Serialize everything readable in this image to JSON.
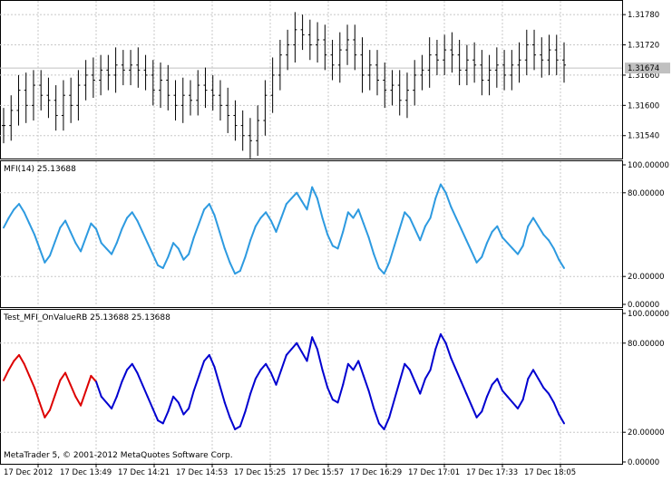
{
  "app": {
    "copyright": "MetaTrader 5, © 2001-2012 MetaQuotes Software Corp."
  },
  "colors": {
    "mfi_line": "#2d9ae0",
    "custom_up": "#0000d0",
    "custom_down": "#dd0000",
    "candles": "#000000",
    "grid": "#c8c8c8",
    "current_price_bg": "#c0c0c0"
  },
  "time_axis": {
    "labels": [
      "17 Dec 2012",
      "17 Dec 13:49",
      "17 Dec 14:21",
      "17 Dec 14:53",
      "17 Dec 15:25",
      "17 Dec 15:57",
      "17 Dec 16:29",
      "17 Dec 17:01",
      "17 Dec 17:33",
      "17 Dec 18:05"
    ]
  },
  "chart_data": [
    {
      "type": "candlestick",
      "panel": "price",
      "ylim": [
        1.315,
        1.318
      ],
      "yticks": [
        "1.31780",
        "1.31720",
        "1.31660",
        "1.31600",
        "1.31540"
      ],
      "ytick_values": [
        1.3178,
        1.3172,
        1.3166,
        1.316,
        1.3154
      ],
      "current_price": "1.31674",
      "current_price_value": 1.31674,
      "close": [
        1.3156,
        1.3159,
        1.3163,
        1.316,
        1.3164,
        1.3162,
        1.3161,
        1.3158,
        1.3162,
        1.316,
        1.3164,
        1.3166,
        1.3165,
        1.3167,
        1.3166,
        1.3168,
        1.3167,
        1.3168,
        1.3167,
        1.3166,
        1.3163,
        1.3165,
        1.3162,
        1.316,
        1.3162,
        1.3161,
        1.3164,
        1.3163,
        1.3162,
        1.316,
        1.3158,
        1.3156,
        1.3154,
        1.3153,
        1.3157,
        1.3162,
        1.3166,
        1.317,
        1.3172,
        1.3175,
        1.3174,
        1.3172,
        1.3173,
        1.317,
        1.3168,
        1.3171,
        1.3173,
        1.317,
        1.3166,
        1.3168,
        1.3165,
        1.3163,
        1.3164,
        1.3161,
        1.3163,
        1.3166,
        1.3167,
        1.317,
        1.3169,
        1.3171,
        1.317,
        1.3167,
        1.3169,
        1.3168,
        1.3165,
        1.3167,
        1.3168,
        1.3166,
        1.3168,
        1.3169,
        1.3172,
        1.317,
        1.3169,
        1.3171,
        1.3169,
        1.3168
      ],
      "high_offset": [
        0.00035,
        0.0003,
        0.0003,
        0.00035,
        0.0003,
        0.0003,
        0.00035,
        0.0003,
        0.0003,
        0.00035,
        0.0003,
        0.0003,
        0.00035,
        0.0003,
        0.0003,
        0.00035,
        0.0003,
        0.0003,
        0.00035,
        0.0003,
        0.0003,
        0.00035,
        0.0003,
        0.0003,
        0.00035,
        0.0003,
        0.0003,
        0.00035,
        0.0003,
        0.0003,
        0.00035,
        0.0003,
        0.0003,
        0.00035,
        0.0003,
        0.0003,
        0.00035,
        0.0003,
        0.0003,
        0.00035,
        0.0003,
        0.0003,
        0.00035,
        0.0003,
        0.0003,
        0.00035,
        0.0003,
        0.0003,
        0.00035,
        0.0003,
        0.0003,
        0.00035,
        0.0003,
        0.0003,
        0.00035,
        0.0003,
        0.0003,
        0.00035,
        0.0003,
        0.0003,
        0.00035,
        0.0003,
        0.0003,
        0.00035,
        0.0003,
        0.0003,
        0.00035,
        0.0003,
        0.0003,
        0.00035,
        0.0003,
        0.0003,
        0.00035,
        0.0003,
        0.0003,
        0.00035
      ],
      "low_offset": [
        0.00035,
        0.0003,
        0.0003,
        0.00035,
        0.0003,
        0.0003,
        0.00035,
        0.0003,
        0.0003,
        0.00035,
        0.0003,
        0.0003,
        0.00035,
        0.0003,
        0.0003,
        0.00035,
        0.0003,
        0.0003,
        0.00035,
        0.0003,
        0.0003,
        0.00035,
        0.0003,
        0.0003,
        0.00035,
        0.0003,
        0.0003,
        0.00035,
        0.0003,
        0.0003,
        0.00035,
        0.0003,
        0.0003,
        0.00035,
        0.0003,
        0.0003,
        0.00035,
        0.0003,
        0.0003,
        0.00035,
        0.0003,
        0.0003,
        0.00035,
        0.0003,
        0.0003,
        0.00035,
        0.0003,
        0.0003,
        0.00035,
        0.0003,
        0.0003,
        0.00035,
        0.0003,
        0.0003,
        0.00035,
        0.0003,
        0.0003,
        0.00035,
        0.0003,
        0.0003,
        0.00035,
        0.0003,
        0.0003,
        0.00035,
        0.0003,
        0.0003,
        0.00035,
        0.0003,
        0.0003,
        0.00035,
        0.0003,
        0.0003,
        0.00035,
        0.0003,
        0.0003,
        0.00035
      ]
    },
    {
      "type": "line",
      "panel": "mfi",
      "label": "MFI(14) 25.13688",
      "ylim": [
        0,
        100
      ],
      "yticks": [
        "100.00000",
        "80.00000",
        "20.00000",
        "0.00000"
      ],
      "ytick_values": [
        100,
        80,
        20,
        0
      ],
      "gridlines": [
        80,
        20
      ],
      "values": [
        55,
        62,
        68,
        72,
        66,
        58,
        50,
        40,
        30,
        35,
        45,
        55,
        60,
        52,
        44,
        38,
        48,
        58,
        54,
        44,
        40,
        36,
        44,
        54,
        62,
        66,
        60,
        52,
        44,
        36,
        28,
        26,
        34,
        44,
        40,
        32,
        36,
        48,
        58,
        68,
        72,
        64,
        52,
        40,
        30,
        22,
        24,
        34,
        46,
        56,
        62,
        66,
        60,
        52,
        62,
        72,
        76,
        80,
        74,
        68,
        84,
        76,
        62,
        50,
        42,
        40,
        52,
        66,
        62,
        68,
        58,
        48,
        36,
        26,
        22,
        30,
        42,
        54,
        66,
        62,
        54,
        46,
        56,
        62,
        76,
        86,
        80,
        70,
        62,
        54,
        46,
        38,
        30,
        34,
        44,
        52,
        56,
        48,
        44,
        40,
        36,
        42,
        56,
        62,
        56,
        50,
        46,
        40,
        32,
        26
      ]
    },
    {
      "type": "line",
      "panel": "custom",
      "label": "Test_MFI_OnValueRB 25.13688 25.13688",
      "ylim": [
        0,
        100
      ],
      "yticks": [
        "100.00000",
        "80.00000",
        "20.00000",
        "0.00000"
      ],
      "ytick_values": [
        100,
        80,
        20,
        0
      ],
      "gridlines": [
        80,
        20
      ],
      "values": [
        55,
        62,
        68,
        72,
        66,
        58,
        50,
        40,
        30,
        35,
        45,
        55,
        60,
        52,
        44,
        38,
        48,
        58,
        54,
        44,
        40,
        36,
        44,
        54,
        62,
        66,
        60,
        52,
        44,
        36,
        28,
        26,
        34,
        44,
        40,
        32,
        36,
        48,
        58,
        68,
        72,
        64,
        52,
        40,
        30,
        22,
        24,
        34,
        46,
        56,
        62,
        66,
        60,
        52,
        62,
        72,
        76,
        80,
        74,
        68,
        84,
        76,
        62,
        50,
        42,
        40,
        52,
        66,
        62,
        68,
        58,
        48,
        36,
        26,
        22,
        30,
        42,
        54,
        66,
        62,
        54,
        46,
        56,
        62,
        76,
        86,
        80,
        70,
        62,
        54,
        46,
        38,
        30,
        34,
        44,
        52,
        56,
        48,
        44,
        40,
        36,
        42,
        56,
        62,
        56,
        50,
        46,
        40,
        32,
        26
      ],
      "red_until_index": 18
    }
  ]
}
